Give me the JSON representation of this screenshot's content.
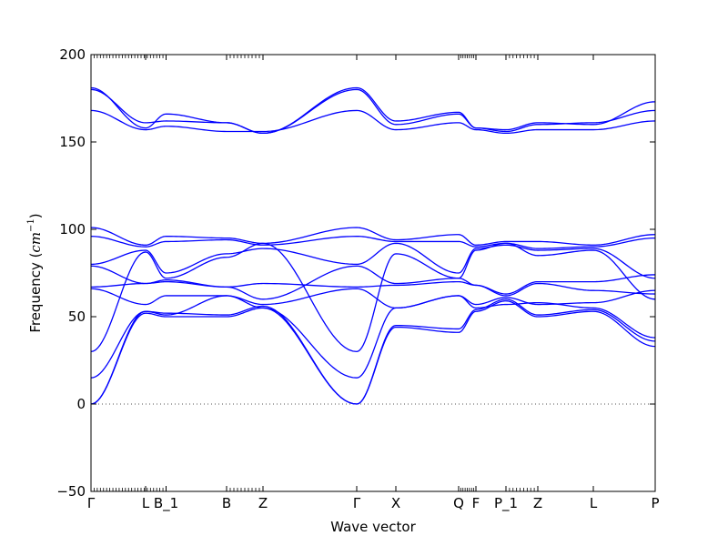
{
  "chart_data": {
    "type": "line",
    "title": "",
    "xlabel": "Wave vector",
    "ylabel": "Frequency ($cm^{-1}$)",
    "ylabel_parts": {
      "main": "Frequency (",
      "sym": "cm",
      "sup": "−1",
      "close": ")"
    },
    "ylim": [
      -50,
      200
    ],
    "yticks": [
      -50,
      0,
      50,
      100,
      150,
      200
    ],
    "xlim": [
      0,
      12.4
    ],
    "grid": false,
    "legend": "none",
    "line_color": "#0000ff",
    "zero_line_color": "#555555",
    "high_symmetry_points": [
      {
        "label": "Γ",
        "x": 0.0
      },
      {
        "label": "L",
        "x": 1.2
      },
      {
        "label": "B_1",
        "x": 1.65
      },
      {
        "label": "B",
        "x": 2.98
      },
      {
        "label": "Z",
        "x": 3.78
      },
      {
        "label": "Γ",
        "x": 5.84
      },
      {
        "label": "X",
        "x": 6.7
      },
      {
        "label": "Q",
        "x": 8.08
      },
      {
        "label": "F",
        "x": 8.46
      },
      {
        "label": "P_1",
        "x": 9.12
      },
      {
        "label": "Z",
        "x": 9.82
      },
      {
        "label": "L",
        "x": 11.04
      },
      {
        "label": "P",
        "x": 12.4
      }
    ],
    "minor_tick_groups": [
      {
        "from": 0.0,
        "to": 1.65,
        "count": 24
      },
      {
        "from": 2.98,
        "to": 3.78,
        "count": 10
      },
      {
        "from": 8.08,
        "to": 8.46,
        "count": 8
      },
      {
        "from": 9.12,
        "to": 9.82,
        "count": 9
      }
    ],
    "series": [
      {
        "x": [
          0,
          1.2,
          1.65,
          2.98,
          3.78,
          5.84,
          6.7,
          8.08,
          8.46,
          9.12,
          9.82,
          11.04,
          12.4
        ],
        "values": [
          0,
          52,
          50,
          50,
          55,
          0,
          44,
          41,
          53,
          59,
          50,
          53,
          33
        ]
      },
      {
        "x": [
          0,
          1.2,
          1.65,
          2.98,
          3.78,
          5.84,
          6.7,
          8.08,
          8.46,
          9.12,
          9.82,
          11.04,
          12.4
        ],
        "values": [
          0,
          53,
          52,
          51,
          56,
          0,
          45,
          43,
          54,
          60,
          51,
          54,
          36
        ]
      },
      {
        "x": [
          0,
          1.2,
          1.65,
          2.98,
          3.78,
          5.84,
          6.7,
          8.08,
          8.46,
          9.12,
          9.82,
          11.04,
          12.4
        ],
        "values": [
          15,
          53,
          51,
          62,
          55,
          15,
          55,
          62,
          55,
          57,
          58,
          55,
          38
        ]
      },
      {
        "x": [
          0,
          1.2,
          1.65,
          2.98,
          3.78,
          5.84,
          6.7,
          8.08,
          8.46,
          9.12,
          9.82,
          11.04,
          12.4
        ],
        "values": [
          30,
          87,
          72,
          84,
          92,
          30,
          86,
          72,
          88,
          92,
          85,
          88,
          60
        ]
      },
      {
        "x": [
          0,
          1.2,
          1.65,
          2.98,
          3.78,
          5.84,
          6.7,
          8.08,
          8.46,
          9.12,
          9.82,
          11.04,
          12.4
        ],
        "values": [
          66,
          57,
          62,
          62,
          57,
          66,
          55,
          62,
          57,
          61,
          57,
          58,
          65
        ]
      },
      {
        "x": [
          0,
          1.2,
          1.65,
          2.98,
          3.78,
          5.84,
          6.7,
          8.08,
          8.46,
          9.12,
          9.82,
          11.04,
          12.4
        ],
        "values": [
          67,
          69,
          70,
          67,
          69,
          67,
          68,
          70,
          68,
          62,
          69,
          65,
          63
        ]
      },
      {
        "x": [
          0,
          1.2,
          1.65,
          2.98,
          3.78,
          5.84,
          6.7,
          8.08,
          8.46,
          9.12,
          9.82,
          11.04,
          12.4
        ],
        "values": [
          79,
          69,
          71,
          67,
          60,
          79,
          69,
          72,
          68,
          63,
          70,
          70,
          74
        ]
      },
      {
        "x": [
          0,
          1.2,
          1.65,
          2.98,
          3.78,
          5.84,
          6.7,
          8.08,
          8.46,
          9.12,
          9.82,
          11.04,
          12.4
        ],
        "values": [
          80,
          88,
          75,
          86,
          89,
          80,
          92,
          75,
          89,
          91,
          88,
          89,
          72
        ]
      },
      {
        "x": [
          0,
          1.2,
          1.65,
          2.98,
          3.78,
          5.84,
          6.7,
          8.08,
          8.46,
          9.12,
          9.82,
          11.04,
          12.4
        ],
        "values": [
          96,
          90,
          93,
          94,
          91,
          96,
          93,
          93,
          90,
          92,
          89,
          90,
          95
        ]
      },
      {
        "x": [
          0,
          1.2,
          1.65,
          2.98,
          3.78,
          5.84,
          6.7,
          8.08,
          8.46,
          9.12,
          9.82,
          11.04,
          12.4
        ],
        "values": [
          101,
          91,
          96,
          95,
          92,
          101,
          94,
          97,
          91,
          93,
          93,
          91,
          97
        ]
      },
      {
        "x": [
          0,
          1.2,
          1.65,
          2.98,
          3.78,
          5.84,
          6.7,
          8.08,
          8.46,
          9.12,
          9.82,
          11.04,
          12.4
        ],
        "values": [
          168,
          157,
          159,
          156,
          156,
          168,
          157,
          161,
          157,
          155,
          157,
          157,
          162
        ]
      },
      {
        "x": [
          0,
          1.2,
          1.65,
          2.98,
          3.78,
          5.84,
          6.7,
          8.08,
          8.46,
          9.12,
          9.82,
          11.04,
          12.4
        ],
        "values": [
          180,
          161,
          162,
          161,
          155,
          180,
          160,
          166,
          158,
          156,
          160,
          161,
          168
        ]
      },
      {
        "x": [
          0,
          1.2,
          1.65,
          2.98,
          3.78,
          5.84,
          6.7,
          8.08,
          8.46,
          9.12,
          9.82,
          11.04,
          12.4
        ],
        "values": [
          181,
          158,
          166,
          161,
          155,
          181,
          162,
          167,
          158,
          157,
          161,
          160,
          173
        ]
      }
    ]
  }
}
